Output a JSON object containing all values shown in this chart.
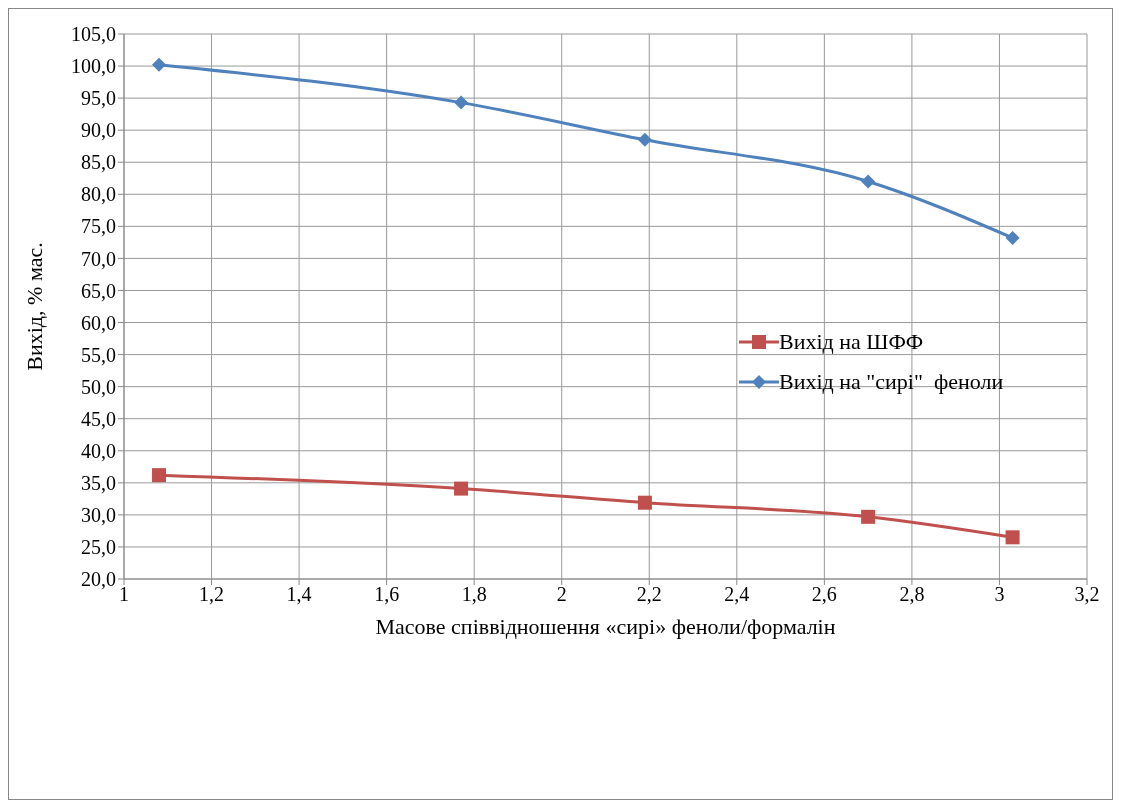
{
  "chart_data": {
    "type": "line",
    "xlabel": "Масове співвідношення «сирі» феноли/формалін",
    "ylabel": "Вихід, % мас.",
    "xlim": [
      1,
      3.2
    ],
    "xticks": [
      1,
      {
        "value": 1.2,
        "label": "1,2"
      },
      {
        "value": 1.4,
        "label": "1,4"
      },
      {
        "value": 1.6,
        "label": "1,6"
      },
      {
        "value": 1.8,
        "label": "1,8"
      },
      2,
      {
        "value": 2.2,
        "label": "2,2"
      },
      {
        "value": 2.4,
        "label": "2,4"
      },
      {
        "value": 2.6,
        "label": "2,6"
      },
      {
        "value": 2.8,
        "label": "2,8"
      },
      3,
      {
        "value": 3.2,
        "label": "3,2"
      }
    ],
    "ylim": [
      20,
      105
    ],
    "yticks": [
      {
        "value": 20,
        "label": "20,0"
      },
      {
        "value": 25,
        "label": "25,0"
      },
      {
        "value": 30,
        "label": "30,0"
      },
      {
        "value": 35,
        "label": "35,0"
      },
      {
        "value": 40,
        "label": "40,0"
      },
      {
        "value": 45,
        "label": "45,0"
      },
      {
        "value": 50,
        "label": "50,0"
      },
      {
        "value": 55,
        "label": "55,0"
      },
      {
        "value": 60,
        "label": "60,0"
      },
      {
        "value": 65,
        "label": "65,0"
      },
      {
        "value": 70,
        "label": "70,0"
      },
      {
        "value": 75,
        "label": "75,0"
      },
      {
        "value": 80,
        "label": "80,0"
      },
      {
        "value": 85,
        "label": "85,0"
      },
      {
        "value": 90,
        "label": "90,0"
      },
      {
        "value": 95,
        "label": "95,0"
      },
      {
        "value": 100,
        "label": "100,0"
      },
      {
        "value": 105,
        "label": "105,0"
      }
    ],
    "x": [
      1.08,
      1.77,
      2.19,
      2.7,
      3.03
    ],
    "series": [
      {
        "name": "Вихід на ШФФ",
        "color": "#c0504d",
        "marker": "square",
        "values": [
          36.2,
          34.1,
          31.9,
          29.7,
          26.5
        ]
      },
      {
        "name": "Вихід на \"сирі\"  феноли",
        "color": "#4f81bd",
        "marker": "diamond",
        "values": [
          100.2,
          94.3,
          88.5,
          82.0,
          73.2
        ]
      }
    ],
    "grid": true,
    "legend": "right",
    "line_style": "solid"
  }
}
